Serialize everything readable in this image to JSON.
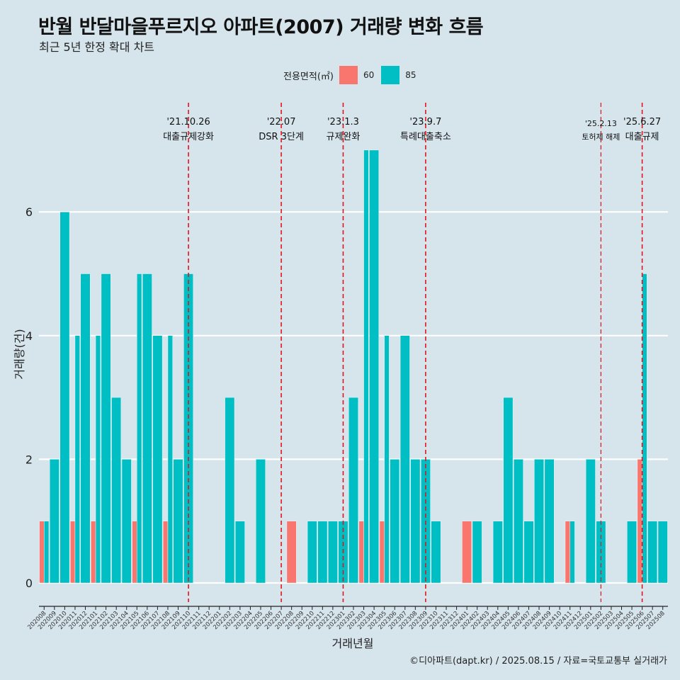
{
  "title": "반월 반달마을푸르지오 아파트(2007) 거래량 변화 흐름",
  "subtitle": "최근 5년 한정 확대 차트",
  "caption": "©디아파트(dapt.kr) / 2025.08.15 / 자료=국토교통부 실거래가",
  "legend": {
    "title": "전용면적(㎡)",
    "items": [
      {
        "label": "60",
        "color": "#F8766D"
      },
      {
        "label": "85",
        "color": "#00BFC4"
      }
    ]
  },
  "chart_data": {
    "type": "bar",
    "xlabel": "거래년월",
    "ylabel": "거래량(건)",
    "ylim": [
      0,
      7
    ],
    "yticks": [
      0,
      2,
      4,
      6
    ],
    "grid": true,
    "legend_position": "top",
    "categories": [
      "202008",
      "202009",
      "202010",
      "202011",
      "202012",
      "202101",
      "202102",
      "202103",
      "202104",
      "202105",
      "202106",
      "202107",
      "202108",
      "202109",
      "202110",
      "202111",
      "202112",
      "202201",
      "202202",
      "202203",
      "202204",
      "202205",
      "202206",
      "202207",
      "202208",
      "202209",
      "202210",
      "202211",
      "202212",
      "202301",
      "202302",
      "202303",
      "202304",
      "202305",
      "202306",
      "202307",
      "202308",
      "202309",
      "202310",
      "202311",
      "202312",
      "202401",
      "202402",
      "202403",
      "202404",
      "202405",
      "202406",
      "202407",
      "202408",
      "202409",
      "202410",
      "202411",
      "202412",
      "202501",
      "202502",
      "202503",
      "202504",
      "202505",
      "202506",
      "202507",
      "202508"
    ],
    "series": [
      {
        "name": "60",
        "color": "#F8766D",
        "values": [
          1,
          0,
          0,
          1,
          0,
          1,
          0,
          0,
          0,
          1,
          0,
          0,
          1,
          0,
          0,
          0,
          0,
          0,
          0,
          0,
          0,
          0,
          0,
          0,
          1,
          0,
          0,
          0,
          0,
          0,
          0,
          1,
          0,
          1,
          0,
          0,
          0,
          0,
          0,
          0,
          0,
          1,
          0,
          0,
          0,
          0,
          0,
          0,
          0,
          0,
          0,
          1,
          0,
          0,
          0,
          0,
          0,
          0,
          2,
          0,
          0
        ]
      },
      {
        "name": "85",
        "color": "#00BFC4",
        "values": [
          1,
          2,
          6,
          4,
          5,
          4,
          5,
          3,
          2,
          5,
          5,
          4,
          4,
          2,
          5,
          0,
          0,
          0,
          3,
          1,
          0,
          2,
          0,
          0,
          0,
          0,
          1,
          1,
          1,
          1,
          3,
          7,
          7,
          4,
          2,
          4,
          2,
          2,
          1,
          0,
          0,
          0,
          1,
          0,
          1,
          3,
          2,
          1,
          2,
          2,
          0,
          1,
          0,
          2,
          1,
          0,
          0,
          1,
          5,
          1,
          1
        ]
      }
    ],
    "annotations": [
      {
        "x": "202110",
        "date": "'21.10.26",
        "text": "대출규제강화"
      },
      {
        "x": "202207",
        "date": "'22.07",
        "text": "DSR 3단계"
      },
      {
        "x": "202301",
        "date": "'23.1.3",
        "text": "규제완화"
      },
      {
        "x": "202309",
        "date": "'23.9.7",
        "text": "특례대출축소"
      },
      {
        "x": "202502",
        "date": "'25.2.13",
        "text": "토허제 해제"
      },
      {
        "x": "202506",
        "date": "'25.6.27",
        "text": "대출규제"
      }
    ]
  }
}
